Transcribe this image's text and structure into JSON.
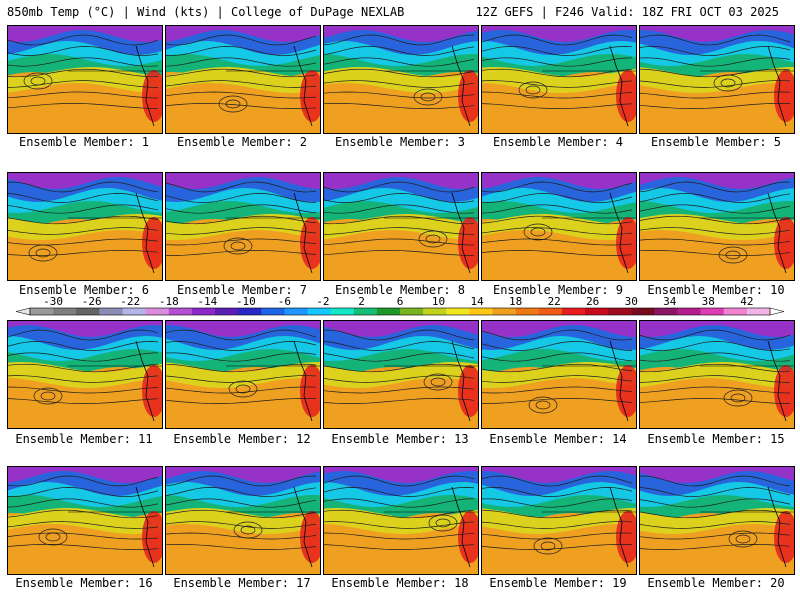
{
  "header": {
    "left_title": "850mb Temp (°C) | Wind (kts) | College of DuPage NEXLAB",
    "right_title": "12Z GEFS | F246 Valid: 18Z FRI OCT 03 2025"
  },
  "members": [
    "Ensemble Member: 1",
    "Ensemble Member: 2",
    "Ensemble Member: 3",
    "Ensemble Member: 4",
    "Ensemble Member: 5",
    "Ensemble Member: 6",
    "Ensemble Member: 7",
    "Ensemble Member: 8",
    "Ensemble Member: 9",
    "Ensemble Member: 10",
    "Ensemble Member: 11",
    "Ensemble Member: 12",
    "Ensemble Member: 13",
    "Ensemble Member: 14",
    "Ensemble Member: 15",
    "Ensemble Member: 16",
    "Ensemble Member: 17",
    "Ensemble Member: 18",
    "Ensemble Member: 19",
    "Ensemble Member: 20"
  ],
  "colorbar": {
    "tick_labels": [
      "-30",
      "-26",
      "-22",
      "-18",
      "-14",
      "-10",
      "-6",
      "-2",
      "2",
      "6",
      "10",
      "14",
      "18",
      "22",
      "26",
      "30",
      "34",
      "38",
      "42"
    ],
    "colors": [
      "#9a9a9a",
      "#7e7e7e",
      "#646464",
      "#8c8cb4",
      "#b4b4e6",
      "#dc8cdc",
      "#b450d2",
      "#8c28c8",
      "#5a1eb4",
      "#2828c8",
      "#1e64e6",
      "#1e96ff",
      "#14c8ff",
      "#14e6c8",
      "#14be78",
      "#1e9628",
      "#78b41e",
      "#bed21e",
      "#f0e61e",
      "#ffc814",
      "#f0a01e",
      "#f07814",
      "#f05a14",
      "#e61e1e",
      "#c80a1e",
      "#a00a1e",
      "#780a1e",
      "#8c1464",
      "#b41e8c",
      "#dc3cb4",
      "#f082d2",
      "#f0b4e6"
    ]
  },
  "map_palette": {
    "polar_purple": "#9632c8",
    "cold_blue": "#2864dc",
    "cyan": "#14c8e6",
    "green": "#14b478",
    "yellow": "#dcd21e",
    "orange": "#f0a020",
    "red": "#e61e1e",
    "contour": "#1e1e1e",
    "land_border": "#000000"
  }
}
